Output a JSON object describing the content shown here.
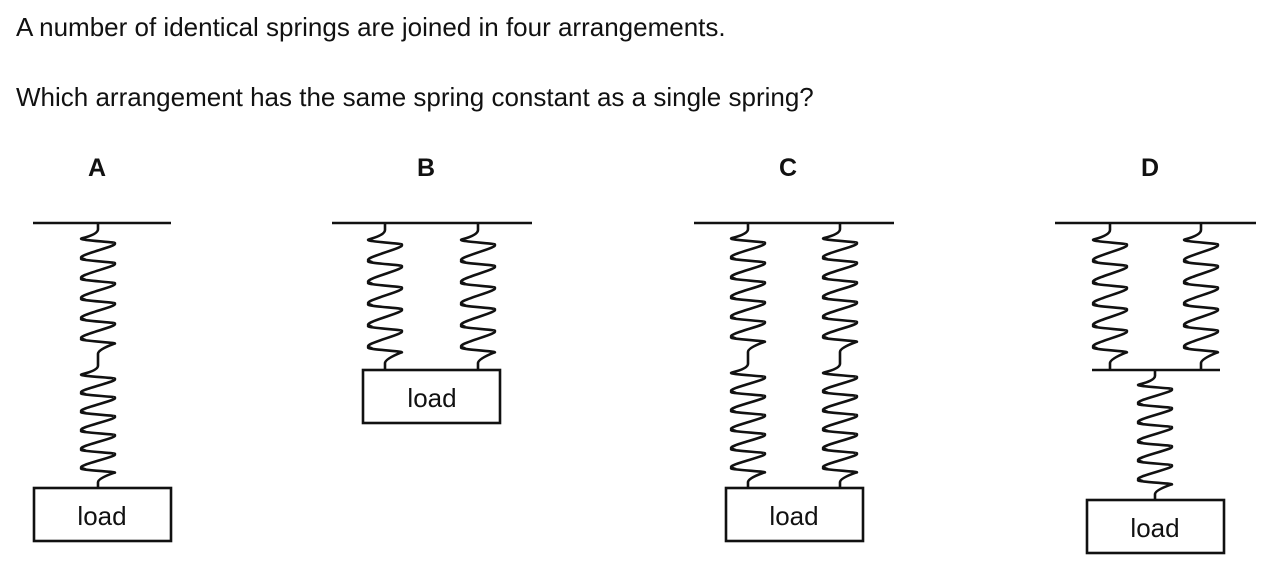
{
  "question": {
    "line1": "A number of identical springs are joined in four arrangements.",
    "line2": "Which arrangement has the same spring constant as a single spring?"
  },
  "options": [
    {
      "letter": "A",
      "load_label": "load"
    },
    {
      "letter": "B",
      "load_label": "load"
    },
    {
      "letter": "C",
      "load_label": "load"
    },
    {
      "letter": "D",
      "load_label": "load"
    }
  ]
}
